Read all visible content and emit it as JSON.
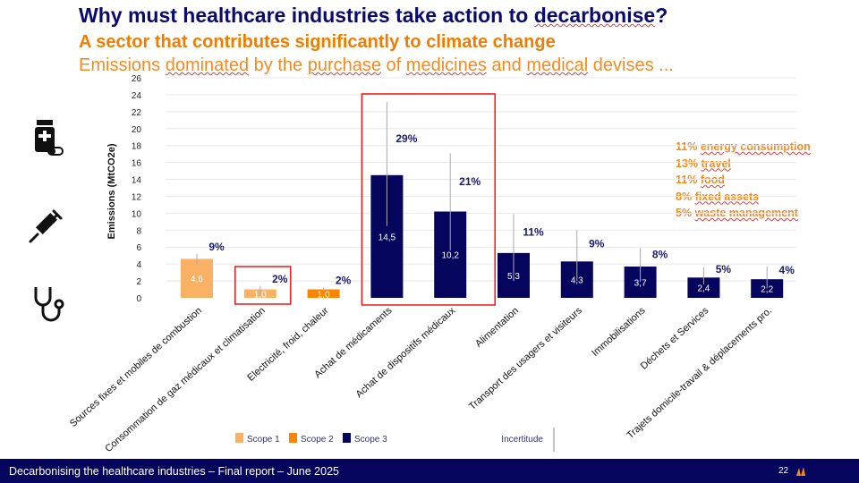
{
  "header": {
    "title_pre": "Why must healthcare industries take action to ",
    "title_word": "decarbonise",
    "title_post": "?",
    "subtitle": "A sector that contributes significantly to climate change",
    "line3": [
      "Emissions ",
      "dominated",
      " by the ",
      "purchase",
      " of ",
      "medicines",
      " and ",
      "medical",
      " devises ..."
    ]
  },
  "side_notes": [
    {
      "pct": "11%",
      "text": "energy consumption"
    },
    {
      "pct": "13%",
      "text": "travel"
    },
    {
      "pct": "11%",
      "text": "food"
    },
    {
      "pct": "8%",
      "text": "fixed assets"
    },
    {
      "pct": "5%",
      "text": "waste management"
    }
  ],
  "icons": [
    "medicine-bottle-icon",
    "syringe-icon",
    "stethoscope-icon"
  ],
  "footer": {
    "text": "Decarbonising the healthcare industries – Final report – June 2025",
    "page": "22"
  },
  "chart_data": {
    "type": "bar",
    "ylabel": "Emissions (MtCO2e)",
    "ylim": [
      0,
      26
    ],
    "yticks": [
      0,
      2,
      4,
      6,
      8,
      10,
      12,
      14,
      16,
      18,
      20,
      22,
      24,
      26
    ],
    "grid": true,
    "categories": [
      "Sources fixes et mobiles de combustion",
      "Consommation de gaz médicaux et climatisation",
      "Electricité, froid, chaleur",
      "Achat de médicaments",
      "Achat de dispositifs médicaux",
      "Alimentation",
      "Transport des usagers et visiteurs",
      "Immobilisations",
      "Déchets et Services",
      "Trajets domicile-travail & déplacements pro."
    ],
    "values": [
      4.6,
      1.0,
      1.0,
      14.5,
      10.2,
      5.3,
      4.3,
      3.7,
      2.4,
      2.2
    ],
    "value_labels": [
      "4,6",
      "1,0",
      "1,0",
      "14,5",
      "10,2",
      "5,3",
      "4,3",
      "3,7",
      "2,4",
      "2,2"
    ],
    "percent_labels": [
      "9%",
      "2%",
      "2%",
      "29%",
      "21%",
      "11%",
      "9%",
      "8%",
      "5%",
      "4%"
    ],
    "scope": [
      1,
      1,
      2,
      3,
      3,
      3,
      3,
      3,
      3,
      3
    ],
    "uncertainty": [
      [
        3.9,
        5.2
      ],
      [
        0.2,
        1.4
      ],
      [
        0.8,
        1.2
      ],
      [
        8.5,
        23.2
      ],
      [
        5.6,
        17.1
      ],
      [
        2.0,
        9.9
      ],
      [
        2.0,
        8.0
      ],
      [
        1.9,
        5.9
      ],
      [
        1.6,
        3.6
      ],
      [
        1.1,
        3.7
      ]
    ],
    "legend": [
      {
        "label": "Scope 1",
        "color": "#f9b264"
      },
      {
        "label": "Scope 2",
        "color": "#fb8500"
      },
      {
        "label": "Scope 3",
        "color": "#05055e"
      }
    ],
    "uncertainty_label": "Incertitude",
    "highlighted": [
      [
        1
      ],
      [
        3,
        4
      ]
    ],
    "highlight_color": "#e81818"
  }
}
